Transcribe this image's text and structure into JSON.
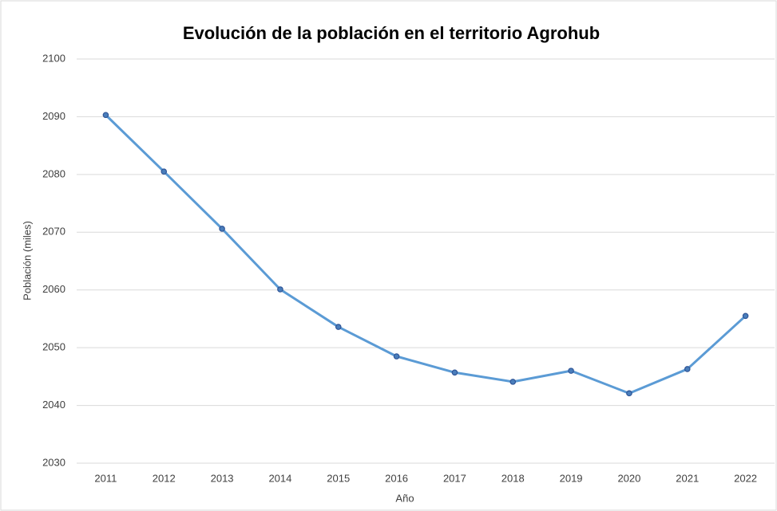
{
  "chart_data": {
    "type": "line",
    "title": "Evolución de la población en el territorio Agrohub",
    "x_label": "Año",
    "y_label": "Población (miles)",
    "categories": [
      "2011",
      "2012",
      "2013",
      "2014",
      "2015",
      "2016",
      "2017",
      "2018",
      "2019",
      "2020",
      "2021",
      "2022"
    ],
    "series": [
      {
        "name": "Población",
        "color": "#5b9bd5",
        "values": [
          2090.3,
          2080.5,
          2070.6,
          2060.1,
          2053.6,
          2048.5,
          2045.7,
          2044.1,
          2046.0,
          2042.1,
          2046.3,
          2055.5
        ]
      }
    ],
    "ylim": [
      2030,
      2100
    ],
    "yticks": [
      2030,
      2040,
      2050,
      2060,
      2070,
      2080,
      2090,
      2100
    ],
    "grid": true,
    "markers": true
  }
}
